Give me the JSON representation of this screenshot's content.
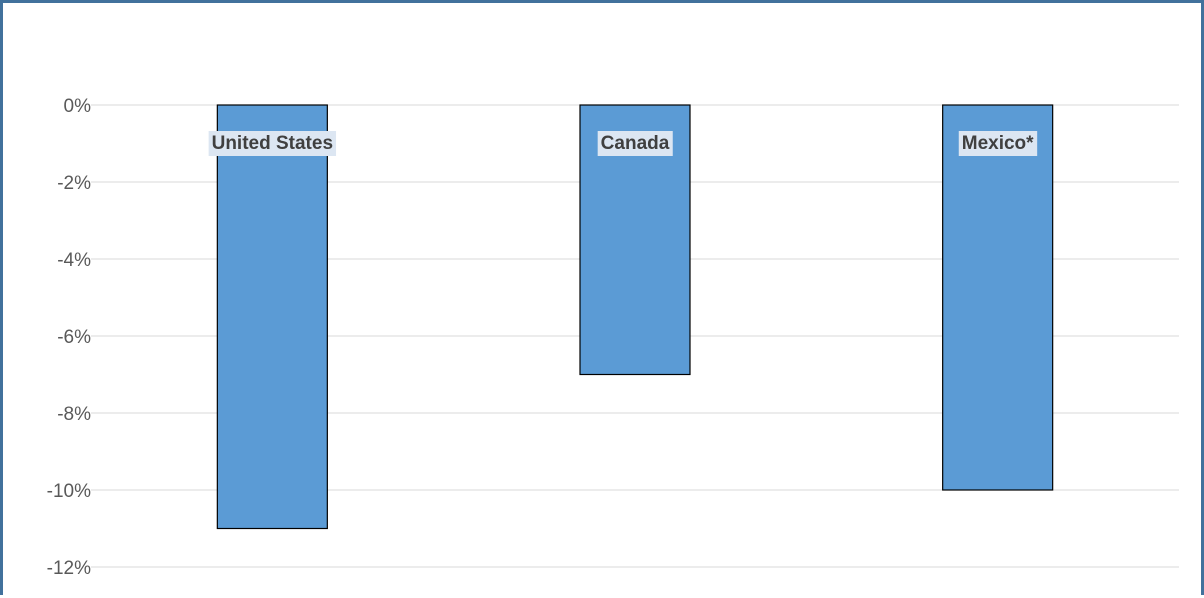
{
  "chart_data": {
    "type": "bar",
    "categories": [
      "United States",
      "Canada",
      "Mexico*"
    ],
    "values": [
      -11,
      -7,
      -10
    ],
    "ylim": [
      -12,
      0
    ],
    "yticks": [
      0,
      -2,
      -4,
      -6,
      -8,
      -10,
      -12
    ],
    "ytick_labels": [
      "0%",
      "-2%",
      "-4%",
      "-6%",
      "-8%",
      "-10%",
      "-12%"
    ],
    "grid": true,
    "title": "",
    "xlabel": "",
    "ylabel": "",
    "colors": {
      "bar_fill": "#5b9bd5",
      "bar_stroke": "#000000",
      "grid": "#d9d9d9",
      "frame": "#41719c",
      "label_background": "#dce6f2"
    }
  }
}
